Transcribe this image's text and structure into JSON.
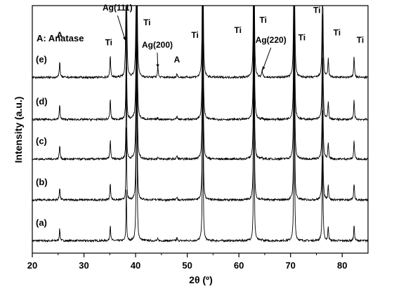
{
  "chart_data": {
    "type": "line",
    "xlabel": "2θ (º)",
    "ylabel": "Intensity (a.u.)",
    "xlim": [
      20,
      85
    ],
    "x_ticks": [
      20,
      30,
      40,
      50,
      60,
      70,
      80
    ],
    "y_ticks_shown": false,
    "grid": false,
    "legend_text": "A: Anatase",
    "series": [
      {
        "name": "(a)",
        "baseline": 0.05
      },
      {
        "name": "(b)",
        "baseline": 0.215
      },
      {
        "name": "(c)",
        "baseline": 0.38
      },
      {
        "name": "(d)",
        "baseline": 0.54
      },
      {
        "name": "(e)",
        "baseline": 0.71
      }
    ],
    "peaks": [
      {
        "x": 25.3,
        "phase": "Anatase",
        "height": 0.06
      },
      {
        "x": 35.1,
        "phase": "Ti",
        "height": 0.08
      },
      {
        "x": 38.2,
        "phase": "Ag(111)",
        "height": 0.9
      },
      {
        "x": 40.2,
        "phase": "Ti",
        "height": 1.5
      },
      {
        "x": 44.3,
        "phase": "Ag(200)",
        "height": 0.045
      },
      {
        "x": 48.0,
        "phase": "Anatase",
        "height": 0.015
      },
      {
        "x": 53.0,
        "phase": "Ti",
        "height": 1.2
      },
      {
        "x": 62.9,
        "phase": "Ti",
        "height": 1.2
      },
      {
        "x": 64.5,
        "phase": "Ag(220)",
        "height": 0.03
      },
      {
        "x": 70.7,
        "phase": "Ti",
        "height": 1.3
      },
      {
        "x": 76.2,
        "phase": "Ti",
        "height": 0.45
      },
      {
        "x": 77.3,
        "phase": "Ti",
        "height": 0.07
      },
      {
        "x": 82.3,
        "phase": "Ti",
        "height": 0.08
      }
    ],
    "annotations": [
      {
        "text": "A",
        "x": 25.3,
        "level": 0.87
      },
      {
        "text": "Ti",
        "x": 34.8,
        "level": 0.84
      },
      {
        "text": "Ag(111)",
        "x": 36.5,
        "level": 0.98
      },
      {
        "text": "Ti",
        "x": 42.2,
        "level": 0.92
      },
      {
        "text": "Ag(200)",
        "x": 44.2,
        "level": 0.83
      },
      {
        "text": "A",
        "x": 48.0,
        "level": 0.77
      },
      {
        "text": "Ti",
        "x": 51.5,
        "level": 0.87
      },
      {
        "text": "Ti",
        "x": 59.8,
        "level": 0.89
      },
      {
        "text": "Ti",
        "x": 64.7,
        "level": 0.93
      },
      {
        "text": "Ag(220)",
        "x": 66.2,
        "level": 0.85
      },
      {
        "text": "Ti",
        "x": 72.2,
        "level": 0.86
      },
      {
        "text": "Ti",
        "x": 75.1,
        "level": 0.97
      },
      {
        "text": "Ti",
        "x": 79.0,
        "level": 0.88
      },
      {
        "text": "Ti",
        "x": 83.5,
        "level": 0.85
      }
    ]
  }
}
